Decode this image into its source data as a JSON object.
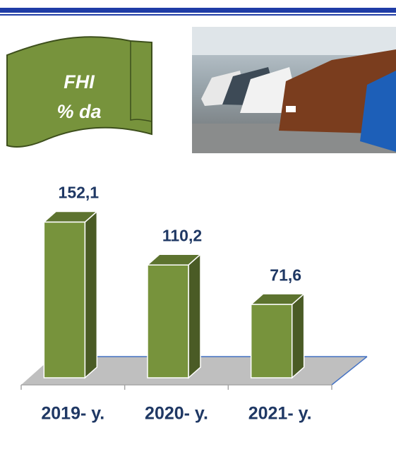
{
  "chart_data": {
    "type": "bar3d",
    "title": "FHI",
    "subtitle": "% da",
    "categories": [
      "2019- y.",
      "2020- y.",
      "2021- y."
    ],
    "values": [
      152.1,
      110.2,
      71.6
    ],
    "value_labels": [
      "152,1",
      "110,2",
      "71,6"
    ],
    "color": "#77933c"
  }
}
